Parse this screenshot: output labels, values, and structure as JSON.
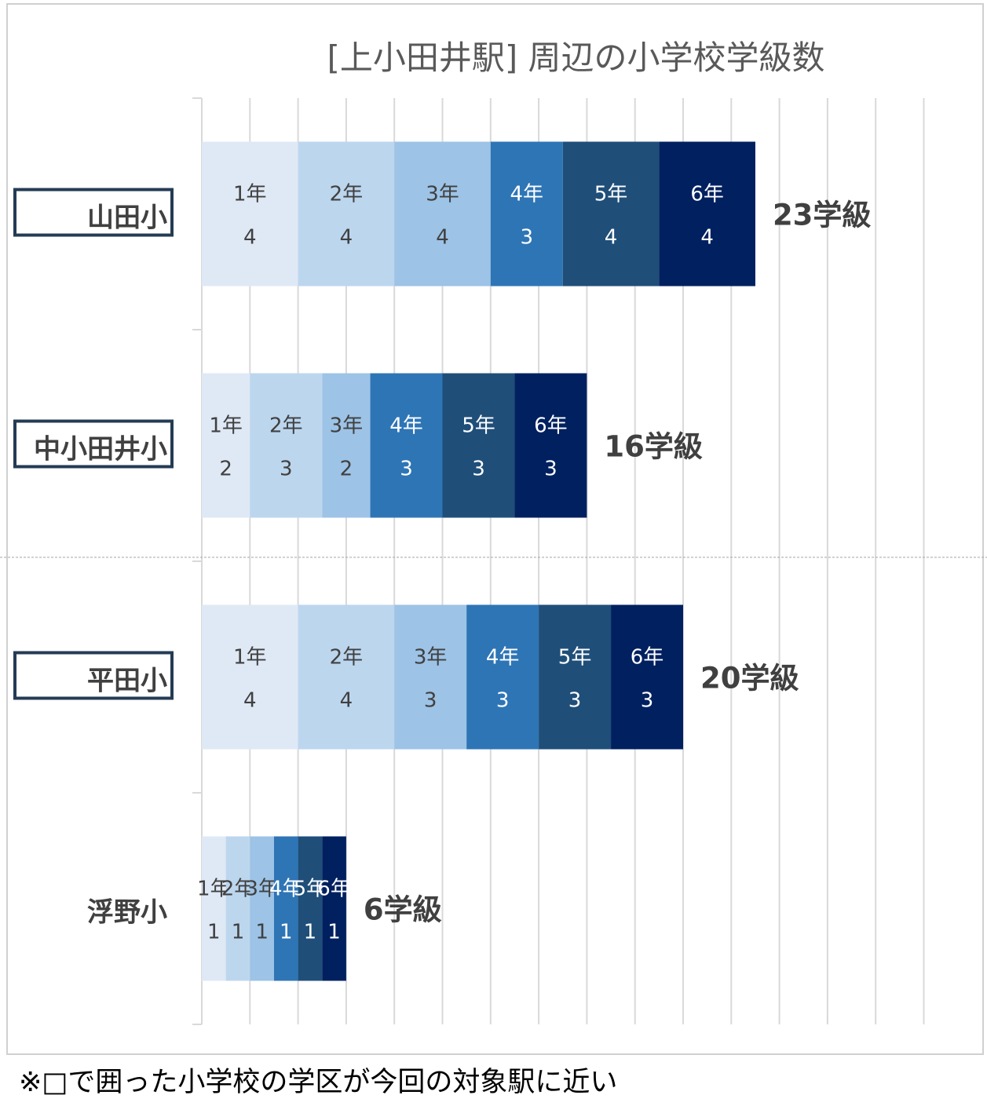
{
  "chart_data": {
    "type": "bar",
    "orientation": "horizontal",
    "stacked": true,
    "title": "[上小田井駅] 周辺の小学校学級数",
    "categories": [
      "山田小",
      "中小田井小",
      "平田小",
      "浮野小"
    ],
    "highlighted": [
      true,
      true,
      true,
      false
    ],
    "series": [
      {
        "name": "1年",
        "values": [
          4,
          2,
          4,
          1
        ],
        "color": "#dfe9f5"
      },
      {
        "name": "2年",
        "values": [
          4,
          3,
          4,
          1
        ],
        "color": "#bcd6ee"
      },
      {
        "name": "3年",
        "values": [
          4,
          2,
          3,
          1
        ],
        "color": "#9dc3e6"
      },
      {
        "name": "4年",
        "values": [
          3,
          3,
          3,
          1
        ],
        "color": "#2e75b6"
      },
      {
        "name": "5年",
        "values": [
          4,
          3,
          3,
          1
        ],
        "color": "#1f4e79"
      },
      {
        "name": "6年",
        "values": [
          4,
          3,
          3,
          1
        ],
        "color": "#002060"
      }
    ],
    "totals": [
      "23学級",
      "16学級",
      "20学級",
      "6学級"
    ],
    "xlim": [
      0,
      30
    ],
    "grid": true,
    "legend": "none"
  },
  "footnote": "※□で囲った小学校の学区が今回の対象駅に近い"
}
